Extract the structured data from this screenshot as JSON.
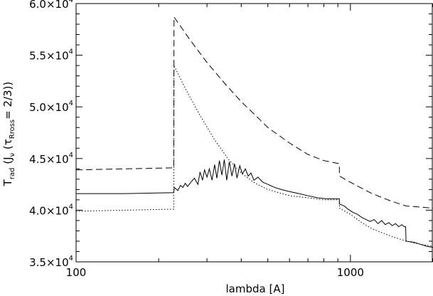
{
  "chart_data": {
    "type": "line",
    "title": "",
    "xlabel": "lambda [A]",
    "ylabel": {
      "prefix": "T",
      "prefix_sub": "rad",
      "middle": " (J",
      "middle_sub": "ν",
      "paren_open": " (",
      "tau": "τ",
      "tau_sub": "Rross",
      "suffix": "= 2/3))"
    },
    "x_scale": "log",
    "xlim": [
      100,
      2000
    ],
    "ylim": [
      35000,
      60000
    ],
    "grid": false,
    "legend": "none",
    "x_ticks": [
      {
        "value": 100,
        "label": "100"
      },
      {
        "value": 1000,
        "label": "1000"
      }
    ],
    "y_ticks": [
      {
        "value": 35000,
        "mant": "3.5",
        "exp": "4"
      },
      {
        "value": 40000,
        "mant": "4.0",
        "exp": "4"
      },
      {
        "value": 45000,
        "mant": "4.5",
        "exp": "4"
      },
      {
        "value": 50000,
        "mant": "5.0",
        "exp": "4"
      },
      {
        "value": 55000,
        "mant": "5.5",
        "exp": "4"
      },
      {
        "value": 60000,
        "mant": "6.0",
        "exp": "4"
      }
    ],
    "series": [
      {
        "style": "dashed",
        "points": [
          [
            100,
            43900
          ],
          [
            150,
            44000
          ],
          [
            227,
            44100
          ],
          [
            227.5,
            58700
          ],
          [
            260,
            56500
          ],
          [
            300,
            54300
          ],
          [
            350,
            52200
          ],
          [
            400,
            50500
          ],
          [
            450,
            49200
          ],
          [
            500,
            48000
          ],
          [
            600,
            46500
          ],
          [
            700,
            45400
          ],
          [
            800,
            44800
          ],
          [
            911,
            44500
          ],
          [
            912,
            43300
          ],
          [
            1000,
            42700
          ],
          [
            1200,
            41600
          ],
          [
            1400,
            40900
          ],
          [
            1600,
            40400
          ],
          [
            1800,
            40300
          ],
          [
            2000,
            40200
          ]
        ]
      },
      {
        "style": "dotted",
        "points": [
          [
            100,
            39900
          ],
          [
            150,
            40000
          ],
          [
            227,
            40100
          ],
          [
            227.5,
            54000
          ],
          [
            250,
            51800
          ],
          [
            280,
            49400
          ],
          [
            320,
            46800
          ],
          [
            360,
            44900
          ],
          [
            400,
            43600
          ],
          [
            450,
            42600
          ],
          [
            500,
            42000
          ],
          [
            600,
            41400
          ],
          [
            700,
            41200
          ],
          [
            800,
            41000
          ],
          [
            911,
            41000
          ],
          [
            912,
            40200
          ],
          [
            1000,
            39600
          ],
          [
            1100,
            38800
          ],
          [
            1200,
            38200
          ],
          [
            1400,
            37500
          ],
          [
            1600,
            37000
          ],
          [
            1800,
            36700
          ],
          [
            2000,
            36500
          ]
        ]
      },
      {
        "style": "solid",
        "points": [
          [
            100,
            41600
          ],
          [
            150,
            41600
          ],
          [
            227,
            41700
          ],
          [
            228,
            42200
          ],
          [
            235,
            41900
          ],
          [
            240,
            42400
          ],
          [
            245,
            42200
          ],
          [
            250,
            42600
          ],
          [
            255,
            42300
          ],
          [
            262,
            42700
          ],
          [
            270,
            43100
          ],
          [
            278,
            42500
          ],
          [
            283,
            43700
          ],
          [
            289,
            42900
          ],
          [
            294,
            43900
          ],
          [
            300,
            43200
          ],
          [
            306,
            44000
          ],
          [
            313,
            42900
          ],
          [
            320,
            44400
          ],
          [
            326,
            43100
          ],
          [
            333,
            44800
          ],
          [
            340,
            43400
          ],
          [
            347,
            44900
          ],
          [
            354,
            42900
          ],
          [
            362,
            44700
          ],
          [
            370,
            43300
          ],
          [
            378,
            44500
          ],
          [
            386,
            43100
          ],
          [
            395,
            44300
          ],
          [
            404,
            43500
          ],
          [
            414,
            44000
          ],
          [
            424,
            43300
          ],
          [
            434,
            43600
          ],
          [
            445,
            42900
          ],
          [
            460,
            43200
          ],
          [
            480,
            42700
          ],
          [
            500,
            42500
          ],
          [
            530,
            42200
          ],
          [
            560,
            42000
          ],
          [
            600,
            41800
          ],
          [
            650,
            41600
          ],
          [
            700,
            41400
          ],
          [
            760,
            41200
          ],
          [
            820,
            41100
          ],
          [
            870,
            41100
          ],
          [
            911,
            41100
          ],
          [
            912,
            40600
          ],
          [
            950,
            40400
          ],
          [
            980,
            40100
          ],
          [
            1020,
            39800
          ],
          [
            1060,
            39600
          ],
          [
            1100,
            39300
          ],
          [
            1140,
            39100
          ],
          [
            1180,
            38900
          ],
          [
            1220,
            39100
          ],
          [
            1260,
            38700
          ],
          [
            1300,
            39000
          ],
          [
            1340,
            38600
          ],
          [
            1380,
            38800
          ],
          [
            1420,
            38500
          ],
          [
            1460,
            38700
          ],
          [
            1500,
            38400
          ],
          [
            1540,
            38600
          ],
          [
            1570,
            38400
          ],
          [
            1590,
            38400
          ],
          [
            1595,
            37000
          ],
          [
            1700,
            36900
          ],
          [
            1800,
            36700
          ],
          [
            1900,
            36500
          ],
          [
            2000,
            36400
          ]
        ]
      }
    ]
  }
}
